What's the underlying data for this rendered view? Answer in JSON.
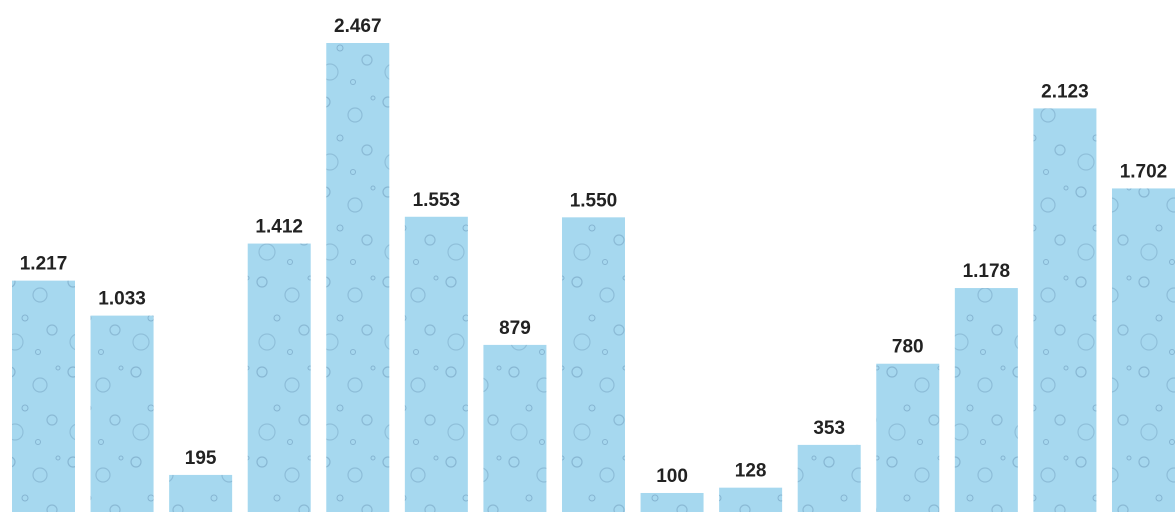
{
  "chart_data": {
    "type": "bar",
    "values": [
      1217,
      1033,
      195,
      1412,
      2467,
      1553,
      879,
      1550,
      100,
      128,
      353,
      780,
      1178,
      2123,
      1702
    ],
    "value_labels": [
      "1.217",
      "1.033",
      "195",
      "1.412",
      "2.467",
      "1.553",
      "879",
      "1.550",
      "100",
      "128",
      "353",
      "780",
      "1.178",
      "2.123",
      "1.702"
    ],
    "color": "#a6d8ef"
  }
}
